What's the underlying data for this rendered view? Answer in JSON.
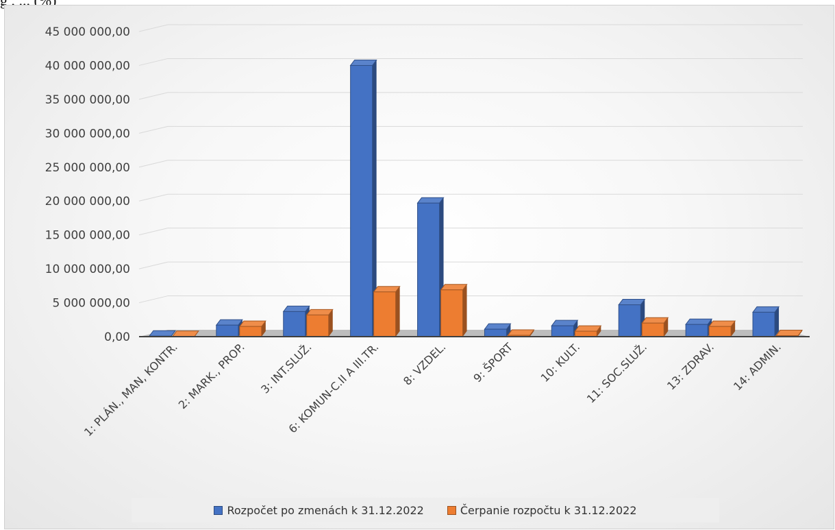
{
  "caption": "g , ... (%)",
  "chart_data": {
    "type": "bar",
    "title": "",
    "xlabel": "",
    "ylabel": "",
    "ylim": [
      0,
      45000000
    ],
    "yticks": [
      "0,00",
      "5 000 000,00",
      "10 000 000,00",
      "15 000 000,00",
      "20 000 000,00",
      "25 000 000,00",
      "30 000 000,00",
      "35 000 000,00",
      "40 000 000,00",
      "45 000 000,00"
    ],
    "categories": [
      "1: PLÁN., MAN, KONTR.",
      "2: MARK., PROP.",
      "3: INT.SLUŽ.",
      "6: KOMUN-C.II A III.TR.",
      "8: VZDEL.",
      "9: ŠPORT",
      "10: KULT.",
      "11: SOC.SLUŽ.",
      "13: ZDRAV.",
      "14: ADMIN."
    ],
    "series": [
      {
        "name": "Rozpočet po zmenách k 31.12.2022",
        "color": "#4472c4",
        "values": [
          80000,
          1700000,
          3700000,
          40000000,
          19700000,
          1100000,
          1600000,
          4700000,
          1800000,
          3600000
        ]
      },
      {
        "name": "Čerpanie rozpočtu k 31.12.2022",
        "color": "#ed7d31",
        "values": [
          30000,
          1500000,
          3200000,
          6600000,
          6900000,
          200000,
          800000,
          2000000,
          1500000,
          150000
        ]
      }
    ],
    "grid": true,
    "legend_position": "bottom"
  }
}
